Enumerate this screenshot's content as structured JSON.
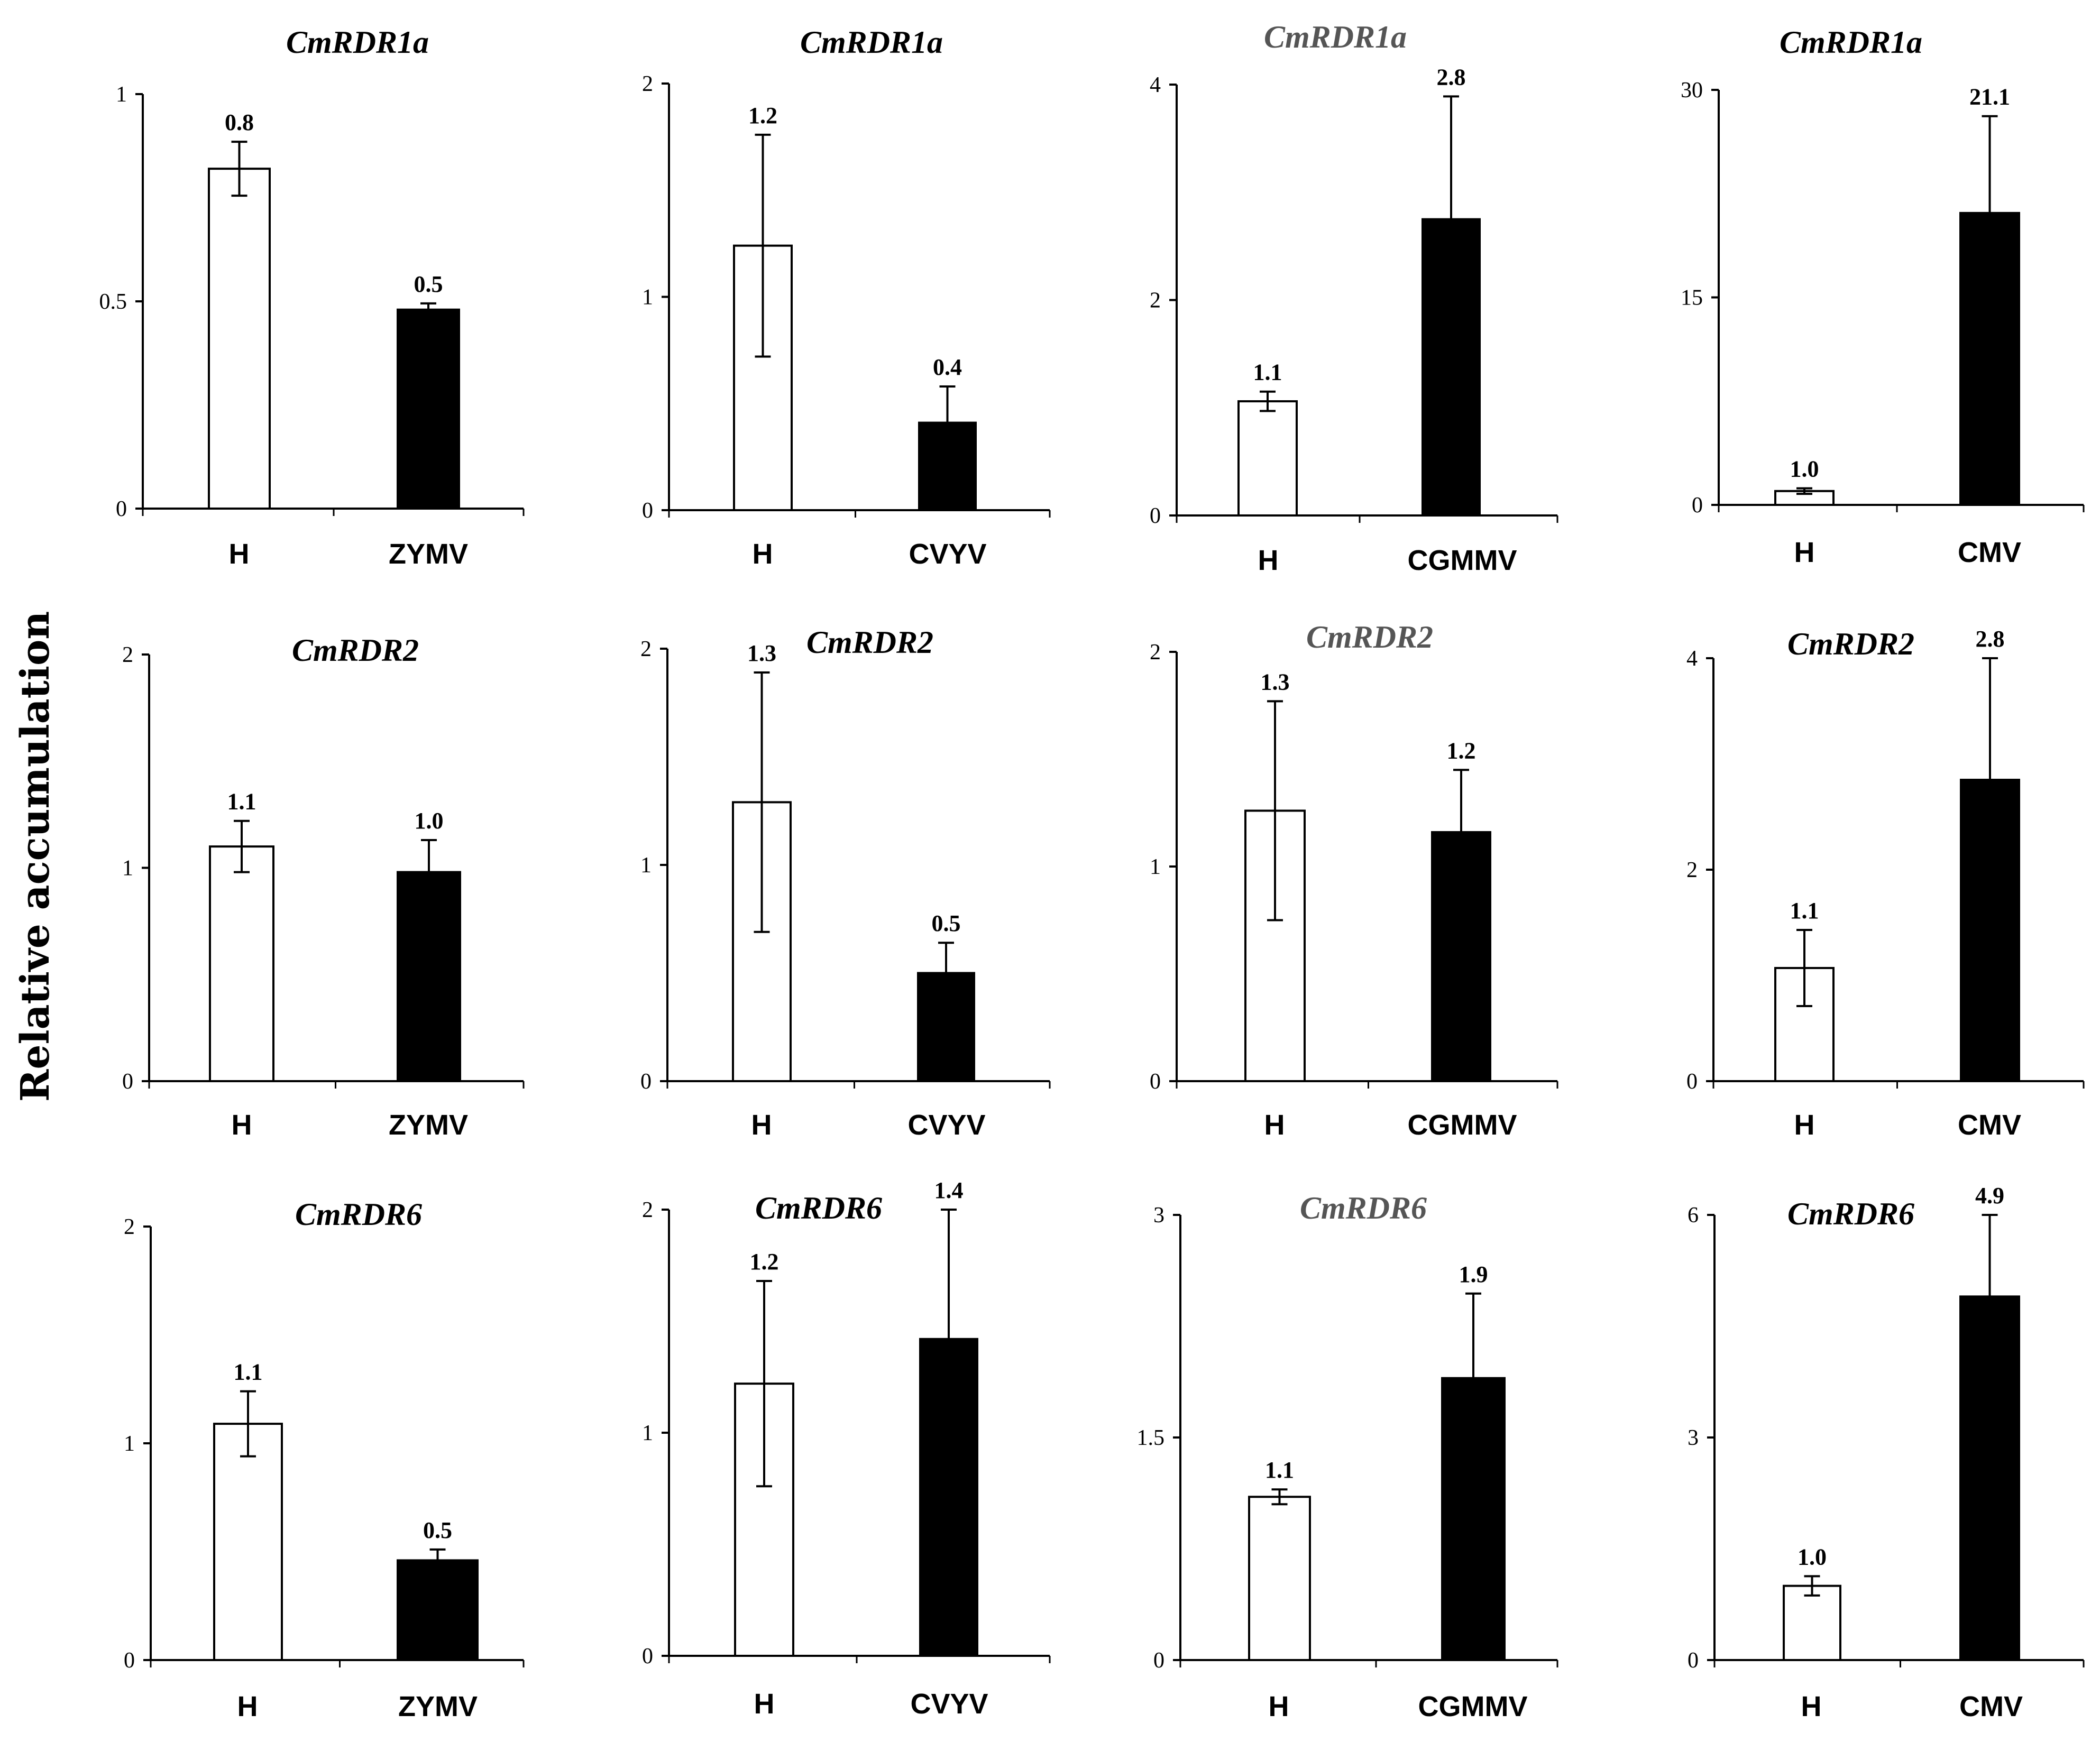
{
  "figure": {
    "ylabel": "Relative accumulation",
    "colors": {
      "healthy_fill": "#ffffff",
      "infected_fill": "#000000",
      "axis": "#000000",
      "title_gray": "#555555"
    }
  },
  "chart_data": [
    {
      "id": "rdr1a-zymv",
      "type": "bar",
      "title": "CmRDR1a",
      "categories": [
        "H",
        "ZYMV"
      ],
      "values": [
        0.82,
        0.48
      ],
      "errors": [
        0.065,
        0.015
      ],
      "labels": [
        "0.8",
        "0.5"
      ],
      "ylim": [
        0,
        1
      ],
      "yticks": [
        0,
        0.5,
        1
      ],
      "ytick_labels": [
        "0",
        "0.5",
        "1"
      ]
    },
    {
      "id": "rdr1a-cvyv",
      "type": "bar",
      "title": "CmRDR1a",
      "categories": [
        "H",
        "CVYV"
      ],
      "values": [
        1.24,
        0.41
      ],
      "errors": [
        0.52,
        0.17
      ],
      "labels": [
        "1.2",
        "0.4"
      ],
      "ylim": [
        0,
        2
      ],
      "yticks": [
        0,
        1,
        2
      ],
      "ytick_labels": [
        "0",
        "1",
        "2"
      ]
    },
    {
      "id": "rdr1a-cgmmv",
      "type": "bar",
      "title": "CmRDR1a",
      "categories": [
        "H",
        "CGMMV"
      ],
      "values": [
        1.06,
        2.75
      ],
      "errors": [
        0.09,
        1.14
      ],
      "labels": [
        "1.1",
        "2.8"
      ],
      "ylim": [
        0,
        4
      ],
      "yticks": [
        0,
        2,
        4
      ],
      "ytick_labels": [
        "0",
        "2",
        "4"
      ]
    },
    {
      "id": "rdr1a-cmv",
      "type": "bar",
      "title": "CmRDR1a",
      "categories": [
        "H",
        "CMV"
      ],
      "values": [
        1.0,
        21.1
      ],
      "errors": [
        0.2,
        7.0
      ],
      "labels": [
        "1.0",
        "21.1"
      ],
      "ylim": [
        0,
        30
      ],
      "yticks": [
        0,
        15,
        30
      ],
      "ytick_labels": [
        "0",
        "15",
        "30"
      ]
    },
    {
      "id": "rdr2-zymv",
      "type": "bar",
      "title": "CmRDR2",
      "categories": [
        "H",
        "ZYMV"
      ],
      "values": [
        1.1,
        0.98
      ],
      "errors": [
        0.12,
        0.15
      ],
      "labels": [
        "1.1",
        "1.0"
      ],
      "ylim": [
        0,
        2
      ],
      "yticks": [
        0,
        1,
        2
      ],
      "ytick_labels": [
        "0",
        "1",
        "2"
      ]
    },
    {
      "id": "rdr2-cvyv",
      "type": "bar",
      "title": "CmRDR2",
      "categories": [
        "H",
        "CVYV"
      ],
      "values": [
        1.29,
        0.5
      ],
      "errors": [
        0.6,
        0.14
      ],
      "labels": [
        "1.3",
        "0.5"
      ],
      "ylim": [
        0,
        2
      ],
      "yticks": [
        0,
        1,
        2
      ],
      "ytick_labels": [
        "0",
        "1",
        "2"
      ]
    },
    {
      "id": "rdr2-cgmmv",
      "type": "bar",
      "title": "CmRDR2",
      "categories": [
        "H",
        "CGMMV"
      ],
      "values": [
        1.26,
        1.16
      ],
      "errors": [
        0.51,
        0.29
      ],
      "labels": [
        "1.3",
        "1.2"
      ],
      "ylim": [
        0,
        2
      ],
      "yticks": [
        0,
        1,
        2
      ],
      "ytick_labels": [
        "0",
        "1",
        "2"
      ]
    },
    {
      "id": "rdr2-cmv",
      "type": "bar",
      "title": "CmRDR2",
      "categories": [
        "H",
        "CMV"
      ],
      "values": [
        1.07,
        2.85
      ],
      "errors": [
        0.36,
        1.15
      ],
      "labels": [
        "1.1",
        "2.8"
      ],
      "ylim": [
        0,
        4
      ],
      "yticks": [
        0,
        2,
        4
      ],
      "ytick_labels": [
        "0",
        "2",
        "4"
      ]
    },
    {
      "id": "rdr6-zymv",
      "type": "bar",
      "title": "CmRDR6",
      "categories": [
        "H",
        "ZYMV"
      ],
      "values": [
        1.09,
        0.46
      ],
      "errors": [
        0.15,
        0.05
      ],
      "labels": [
        "1.1",
        "0.5"
      ],
      "ylim": [
        0,
        2
      ],
      "yticks": [
        0,
        1,
        2
      ],
      "ytick_labels": [
        "0",
        "1",
        "2"
      ]
    },
    {
      "id": "rdr6-cvyv",
      "type": "bar",
      "title": "CmRDR6",
      "categories": [
        "H",
        "CVYV"
      ],
      "values": [
        1.22,
        1.42
      ],
      "errors": [
        0.46,
        0.58
      ],
      "labels": [
        "1.2",
        "1.4"
      ],
      "ylim": [
        0,
        2
      ],
      "yticks": [
        0,
        1,
        2
      ],
      "ytick_labels": [
        "0",
        "1",
        "2"
      ]
    },
    {
      "id": "rdr6-cgmmv",
      "type": "bar",
      "title": "CmRDR6",
      "categories": [
        "H",
        "CGMMV"
      ],
      "values": [
        1.1,
        1.9
      ],
      "errors": [
        0.05,
        0.57
      ],
      "labels": [
        "1.1",
        "1.9"
      ],
      "ylim": [
        0,
        3
      ],
      "yticks": [
        0,
        1.5,
        3
      ],
      "ytick_labels": [
        "0",
        "1.5",
        "3"
      ]
    },
    {
      "id": "rdr6-cmv",
      "type": "bar",
      "title": "CmRDR6",
      "categories": [
        "H",
        "CMV"
      ],
      "values": [
        1.0,
        4.9
      ],
      "errors": [
        0.13,
        1.1
      ],
      "labels": [
        "1.0",
        "4.9"
      ],
      "ylim": [
        0,
        6
      ],
      "yticks": [
        0,
        3,
        6
      ],
      "ytick_labels": [
        "0",
        "3",
        "6"
      ]
    }
  ]
}
